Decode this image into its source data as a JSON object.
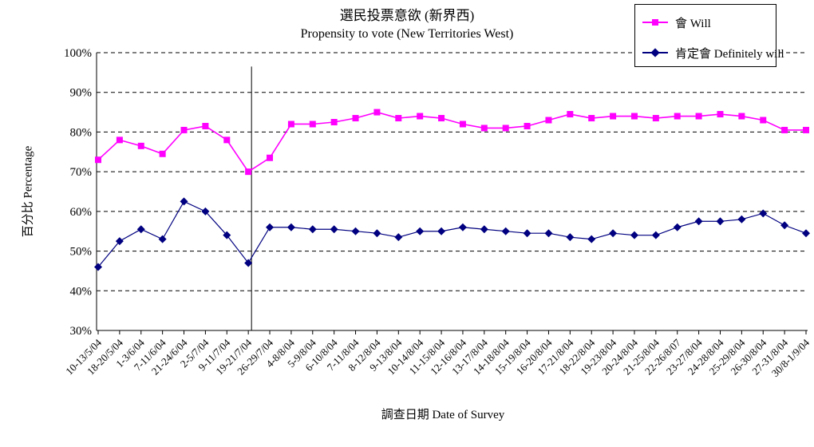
{
  "chart_data": {
    "type": "line",
    "title": "選民投票意欲 (新界西)",
    "subtitle": "Propensity to vote (New Territories West)",
    "xlabel": "調查日期 Date of Survey",
    "ylabel": "百分比 Percentage",
    "ylim": [
      30,
      100
    ],
    "ytick_step": 10,
    "ytick_labels": [
      "30%",
      "40%",
      "50%",
      "60%",
      "70%",
      "80%",
      "90%",
      "100%"
    ],
    "grid": "dashed-horizontal",
    "legend_position": "top-right",
    "categories": [
      "10-13/5/04",
      "18-20/5/04",
      "1-3/6/04",
      "7-11/6/04",
      "21-24/6/04",
      "2-5/7/04",
      "9-11/7/04",
      "19-21/7/04",
      "26-29/7/04",
      "4-8/8/04",
      "5-9/8/04",
      "6-10/8/04",
      "7-11/8/04",
      "8-12/8/04",
      "9-13/8/04",
      "10-14/8/04",
      "11-15/8/04",
      "12-16/8/04",
      "13-17/8/04",
      "14-18/8/04",
      "15-19/8/04",
      "16-20/8/04",
      "17-21/8/04",
      "18-22/8/04",
      "19-23/8/04",
      "20-24/8/04",
      "21-25/8/04",
      "22-26/8/07",
      "23-27/8/04",
      "24-28/8/04",
      "25-29/8/04",
      "26-30/8/04",
      "27-31/8/04",
      "30/8-1/9/04"
    ],
    "series": [
      {
        "name": "會 Will",
        "color": "#FF00FF",
        "marker": "square",
        "values": [
          73,
          78,
          76.5,
          74.5,
          80.5,
          81.5,
          78,
          70,
          73.5,
          82,
          82,
          82.5,
          83.5,
          85,
          83.5,
          84,
          83.5,
          82,
          81,
          81,
          81.5,
          83,
          84.5,
          83.5,
          84,
          84,
          83.5,
          84,
          84,
          84.5,
          84,
          83,
          80.5,
          80.5
        ]
      },
      {
        "name": "肯定會 Definitely will",
        "color": "#000080",
        "marker": "diamond",
        "values": [
          46,
          52.5,
          55.5,
          53,
          62.5,
          60,
          54,
          47,
          56,
          56,
          55.5,
          55.5,
          55,
          54.5,
          53.5,
          55,
          55,
          56,
          55.5,
          55,
          54.5,
          54.5,
          53.5,
          53,
          54.5,
          54,
          54,
          56,
          57.5,
          57.5,
          58,
          59.5,
          56.5,
          54.5
        ]
      }
    ],
    "vertical_reference_line": {
      "x_index": 7.15,
      "top_pct": 96.5,
      "bottom_pct": 30,
      "color": "#000000"
    }
  }
}
